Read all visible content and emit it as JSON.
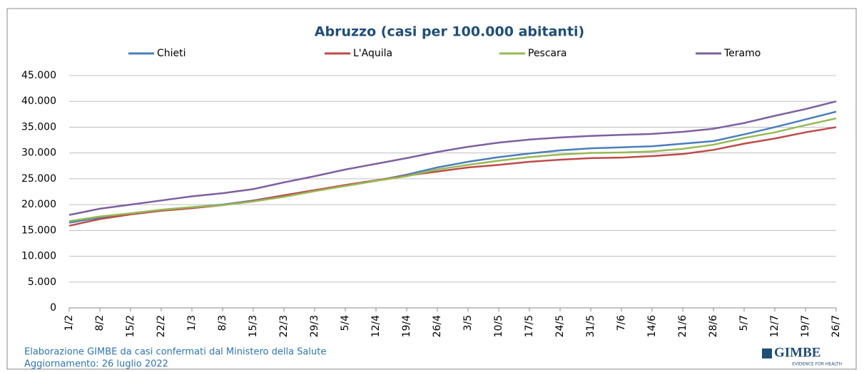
{
  "chart_data": {
    "type": "line",
    "title": "Abruzzo (casi per 100.000 abitanti)",
    "categories": [
      "1/2",
      "8/2",
      "15/2",
      "22/2",
      "1/3",
      "8/3",
      "15/3",
      "22/3",
      "29/3",
      "5/4",
      "12/4",
      "19/4",
      "26/4",
      "3/5",
      "10/5",
      "17/5",
      "24/5",
      "31/5",
      "7/6",
      "14/6",
      "21/6",
      "28/6",
      "5/7",
      "12/7",
      "19/7",
      "26/7"
    ],
    "series": [
      {
        "name": "Chieti",
        "color": "#4a7ebb",
        "values": [
          16500,
          17500,
          18300,
          19000,
          19500,
          20000,
          20800,
          21800,
          22800,
          23700,
          24600,
          25800,
          27200,
          28300,
          29200,
          29900,
          30500,
          30900,
          31100,
          31300,
          31800,
          32300,
          33600,
          35000,
          36500,
          38000
        ]
      },
      {
        "name": "L'Aquila",
        "color": "#be4b48",
        "values": [
          15900,
          17200,
          18100,
          18800,
          19300,
          19900,
          20700,
          21800,
          22800,
          23800,
          24700,
          25600,
          26400,
          27200,
          27700,
          28300,
          28700,
          29000,
          29100,
          29400,
          29800,
          30600,
          31800,
          32800,
          34000,
          35000
        ]
      },
      {
        "name": "Pescara",
        "color": "#98b954",
        "values": [
          16800,
          17700,
          18300,
          19000,
          19500,
          19900,
          20600,
          21500,
          22600,
          23600,
          24600,
          25500,
          26800,
          27700,
          28500,
          29200,
          29700,
          30000,
          30100,
          30300,
          30800,
          31600,
          32900,
          34000,
          35400,
          36700
        ]
      },
      {
        "name": "Teramo",
        "color": "#7d60a0",
        "values": [
          18000,
          19200,
          20000,
          20800,
          21600,
          22200,
          23000,
          24300,
          25500,
          26800,
          27900,
          29000,
          30200,
          31200,
          32000,
          32600,
          33000,
          33300,
          33500,
          33700,
          34100,
          34700,
          35800,
          37200,
          38500,
          40000
        ]
      }
    ],
    "ylim": [
      0,
      45000
    ],
    "yticks": [
      0,
      {
        "value": 5000,
        "label": "5.000"
      },
      {
        "value": 10000,
        "label": "10.000"
      },
      {
        "value": 15000,
        "label": "15.000"
      },
      {
        "value": 20000,
        "label": "20.000"
      },
      {
        "value": 25000,
        "label": "25.000"
      },
      {
        "value": 30000,
        "label": "30.000"
      },
      {
        "value": 35000,
        "label": "35.000"
      },
      {
        "value": 40000,
        "label": "40.000"
      },
      {
        "value": 45000,
        "label": "45.000"
      }
    ],
    "grid": true,
    "legend": "top",
    "notes": [
      "Elaborazione GIMBE da casi confermati dal Ministero della Salute",
      "Aggiornamento: 26 luglio 2022"
    ],
    "logo": "GIMBE",
    "logo_tagline": "EVIDENCE FOR HEALTH"
  }
}
